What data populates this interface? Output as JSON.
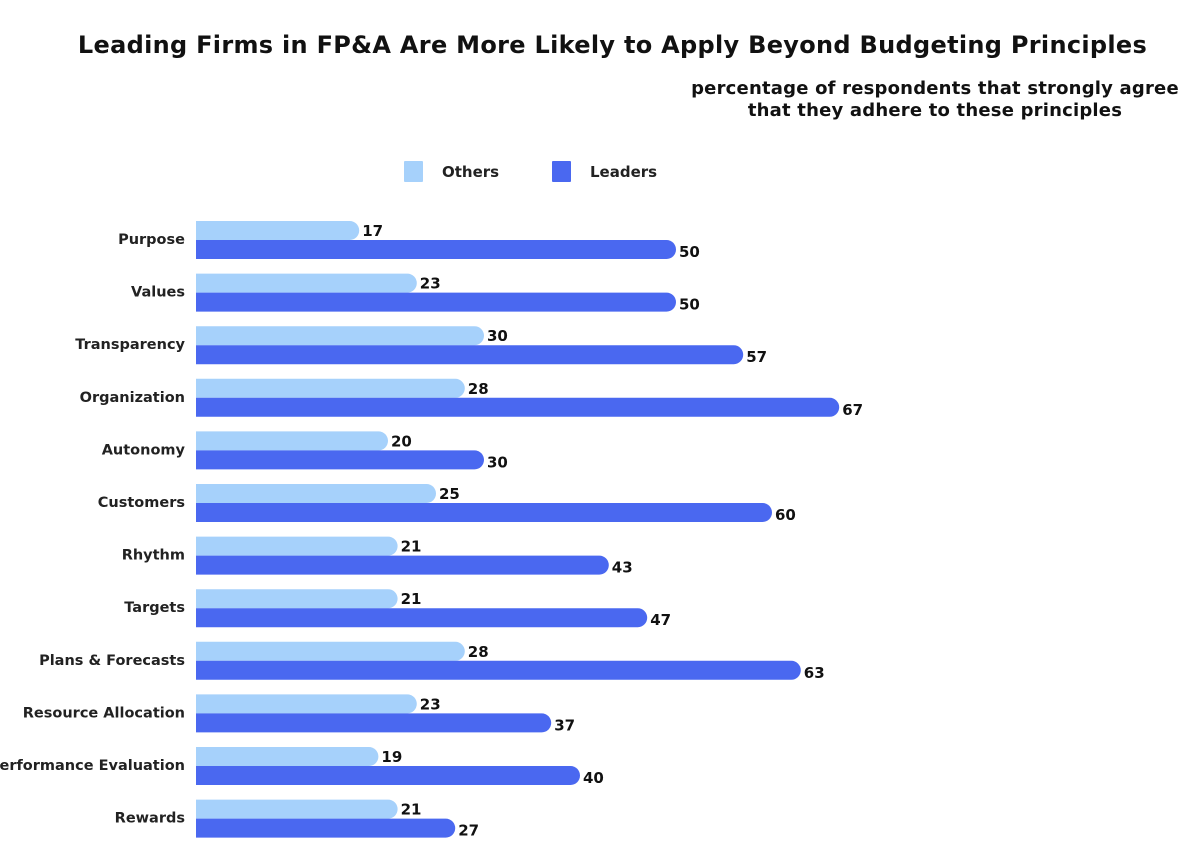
{
  "chart_data": {
    "type": "bar",
    "orientation": "horizontal",
    "title": "Leading Firms in FP&A Are More Likely to Apply Beyond Budgeting Principles",
    "subtitle": [
      "percentage of respondents that strongly agree",
      "that they adhere to these principles"
    ],
    "categories": [
      "Purpose",
      "Values",
      "Transparency",
      "Organization",
      "Autonomy",
      "Customers",
      "Rhythm",
      "Targets",
      "Plans & Forecasts",
      "Resource Allocation",
      "Performance Evaluation",
      "Rewards"
    ],
    "series": [
      {
        "name": "Others",
        "color": "#a6d1fb",
        "values": [
          17,
          23,
          30,
          28,
          20,
          25,
          21,
          21,
          28,
          23,
          19,
          21
        ]
      },
      {
        "name": "Leaders",
        "color": "#4a68f0",
        "values": [
          50,
          50,
          57,
          67,
          30,
          60,
          43,
          47,
          63,
          37,
          40,
          27
        ]
      }
    ],
    "xlim": [
      0,
      100
    ],
    "grid": false,
    "legend": "top-center",
    "data_labels": true
  }
}
